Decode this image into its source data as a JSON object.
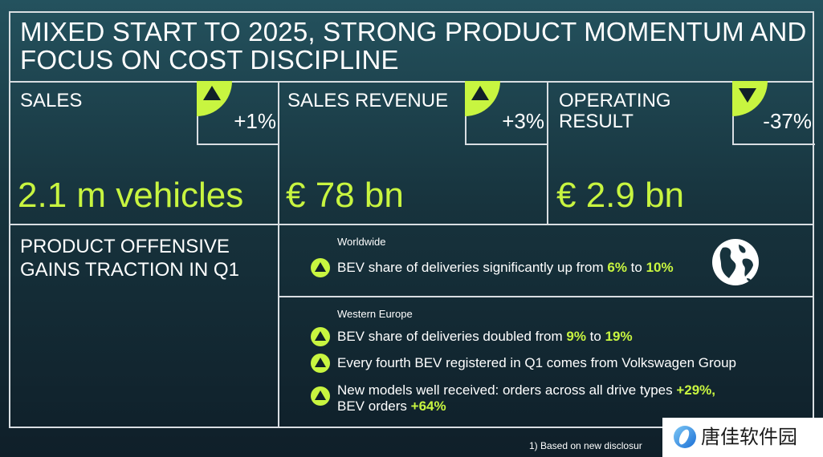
{
  "title": "MIXED START TO 2025, STRONG PRODUCT MOMENTUM AND FOCUS ON COST DISCIPLINE",
  "kpis": [
    {
      "label": "SALES",
      "change": "+1%",
      "direction": "up",
      "value": "2.1 m vehicles"
    },
    {
      "label": "SALES REVENUE",
      "change": "+3%",
      "direction": "up",
      "value": "€ 78 bn"
    },
    {
      "label": "OPERATING RESULT",
      "change": "-37%",
      "direction": "down",
      "value": "€ 2.9 bn"
    }
  ],
  "offensive": {
    "title": "PRODUCT OFFENSIVE GAINS TRACTION IN Q1",
    "worldwide": {
      "region": "Worldwide",
      "icon": "globe-icon",
      "b1": {
        "t1": "BEV share of deliveries significantly up from ",
        "h1": "6%",
        "t2": " to ",
        "h2": "10%"
      }
    },
    "western_europe": {
      "region": "Western Europe",
      "b1": {
        "t1": "BEV share of deliveries doubled from ",
        "h1": "9%",
        "t2": " to ",
        "h2": "19%"
      },
      "b2": {
        "t1": "Every fourth BEV registered in Q1 comes from Volkswagen Group"
      },
      "b3": {
        "t1": "New models well received: orders across all drive types ",
        "h1": "+29%,",
        "t2": "BEV orders ",
        "h2": "+64%"
      }
    }
  },
  "footnote": "1)  Based on new disclosur",
  "watermark": "唐佳软件园",
  "colors": {
    "accent": "#c8f540",
    "frame": "#d9dee2",
    "background": "#17333d"
  }
}
